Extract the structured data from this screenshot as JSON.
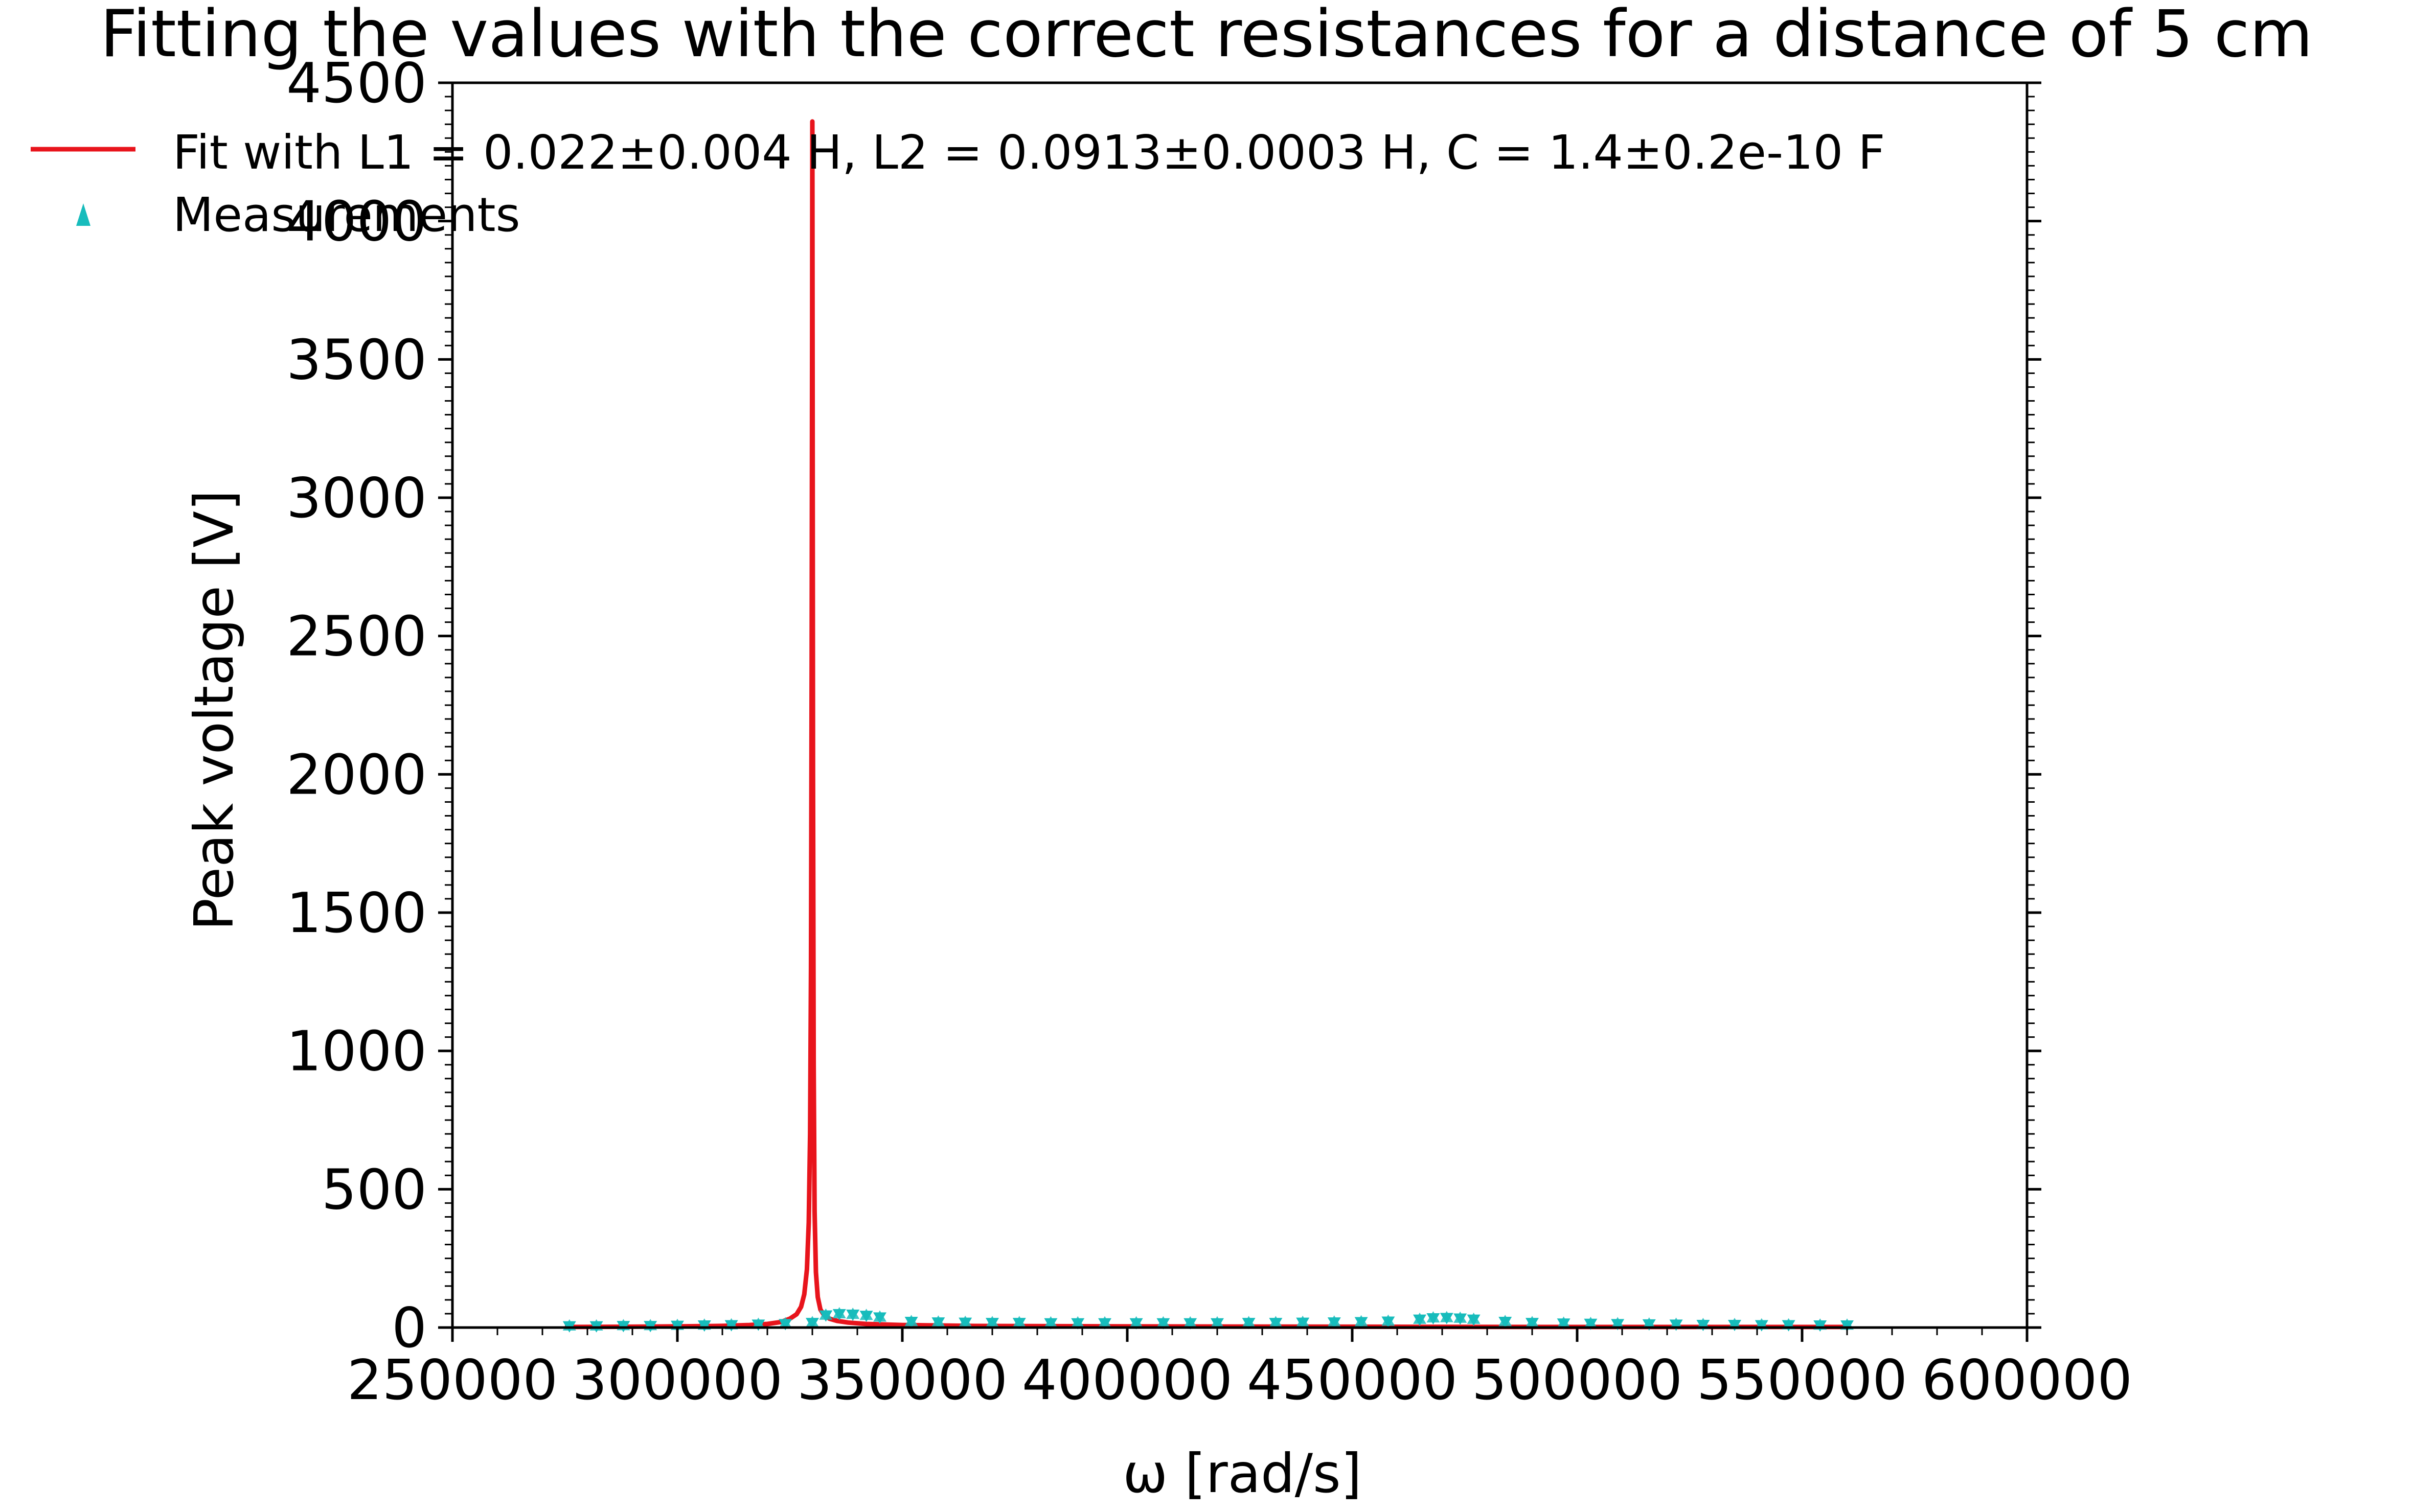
{
  "chart_data": {
    "type": "line",
    "title": "Fitting the values with the correct resistances for a distance of 5 cm",
    "xlabel": "ω [rad/s]",
    "ylabel": "Peak voltage [V]",
    "xlim": [
      250000,
      600000
    ],
    "ylim": [
      0,
      4500
    ],
    "xticks": [
      "250000",
      "300000",
      "350000",
      "400000",
      "450000",
      "500000",
      "550000",
      "600000"
    ],
    "yticks": [
      "0",
      "500",
      "1000",
      "1500",
      "2000",
      "2500",
      "3000",
      "3500",
      "4000",
      "4500"
    ],
    "legend_position": "top-left",
    "grid": false,
    "series": [
      {
        "name": "Fit with L1 = 0.022±0.004 H, L2 = 0.0913±0.0003 H, C = 1.4±0.2e-10 F",
        "kind": "line",
        "color": "#e8141c",
        "resonance_x": 330000,
        "x": [
          275000,
          290000,
          300000,
          310000,
          316000,
          320000,
          323000,
          325000,
          326500,
          327500,
          328200,
          328800,
          329200,
          329500,
          329700,
          329850,
          329950,
          330000,
          330050,
          330150,
          330300,
          330500,
          330800,
          331200,
          331800,
          332600,
          333800,
          335500,
          338000,
          342000,
          350000,
          365000,
          400000,
          450000,
          500000,
          560000
        ],
        "y": [
          2,
          3,
          4,
          6,
          9,
          13,
          20,
          32,
          48,
          75,
          120,
          210,
          380,
          700,
          1300,
          2400,
          3600,
          4360,
          3600,
          2000,
          950,
          420,
          200,
          110,
          65,
          45,
          32,
          24,
          18,
          13,
          9,
          6,
          4,
          3,
          2,
          2
        ]
      },
      {
        "name": "Measurements",
        "kind": "markers",
        "color": "#17bcbc",
        "x": [
          276000,
          282000,
          288000,
          294000,
          300000,
          306000,
          312000,
          318000,
          324000,
          330000,
          333000,
          336000,
          339000,
          342000,
          345000,
          352000,
          358000,
          364000,
          370000,
          376000,
          383000,
          389000,
          395000,
          402000,
          408000,
          414000,
          420000,
          427000,
          433000,
          439000,
          446000,
          452000,
          458000,
          465000,
          468000,
          471000,
          474000,
          477000,
          484000,
          490000,
          497000,
          503000,
          509000,
          516000,
          522000,
          528000,
          535000,
          541000,
          547000,
          554000,
          560000
        ],
        "y": [
          6,
          6,
          7,
          7,
          8,
          9,
          10,
          12,
          14,
          18,
          45,
          50,
          48,
          44,
          38,
          22,
          20,
          19,
          18,
          18,
          17,
          17,
          17,
          17,
          17,
          17,
          17,
          18,
          18,
          19,
          20,
          21,
          23,
          30,
          35,
          36,
          34,
          30,
          22,
          18,
          16,
          15,
          14,
          13,
          12,
          11,
          11,
          10,
          10,
          9,
          9
        ]
      }
    ]
  }
}
